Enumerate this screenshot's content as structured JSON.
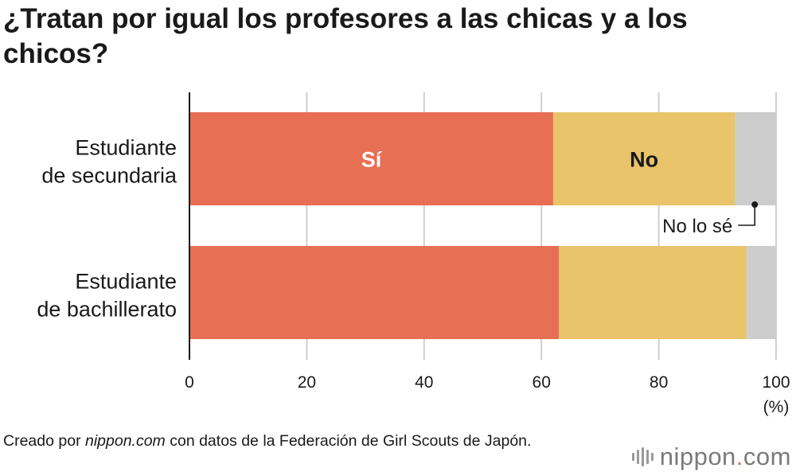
{
  "title": "¿Tratan por igual los profesores a las chicas y a los chicos?",
  "source": {
    "prefix": "Creado por ",
    "site": "nippon.com",
    "suffix": " con datos de la Federación de Girl Scouts de Japón."
  },
  "brand": {
    "name": "nippon",
    "dot": ".",
    "tld": "com"
  },
  "colors": {
    "si": "#e76f53",
    "no": "#e9c46b",
    "nolose": "#cccccc",
    "grid": "#cfcfcf",
    "axis": "#1a1a1a"
  },
  "chart_data": {
    "type": "bar",
    "orientation": "horizontal",
    "stacked": true,
    "categories": [
      [
        "Estudiante",
        "de secundaria"
      ],
      [
        "Estudiante",
        "de bachillerato"
      ]
    ],
    "series": [
      {
        "name": "Sí",
        "values": [
          62,
          63
        ],
        "color": "#e76f53",
        "label_color": "#ffffff"
      },
      {
        "name": "No",
        "values": [
          31,
          32
        ],
        "color": "#e9c46b",
        "label_color": "#1a1a1a"
      },
      {
        "name": "No lo sé",
        "values": [
          7,
          5
        ],
        "color": "#cccccc"
      }
    ],
    "xlim": [
      0,
      100
    ],
    "xticks": [
      0,
      20,
      40,
      60,
      80,
      100
    ],
    "xunit": "(%)",
    "grid": true
  }
}
